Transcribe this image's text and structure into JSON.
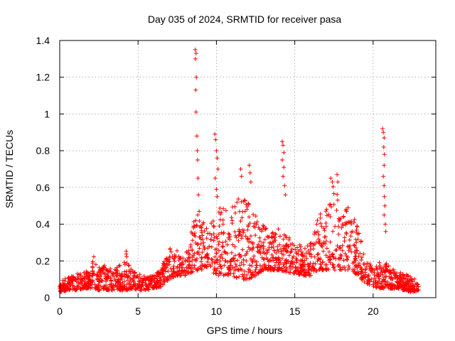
{
  "chart_data": {
    "type": "scatter",
    "title": "Day 035 of 2024, SRMTID for receiver pasa",
    "xlabel": "GPS time / hours",
    "ylabel": "SRMTID / TECUs",
    "xlim": [
      0,
      24
    ],
    "ylim": [
      0,
      1.4
    ],
    "xticks": [
      0,
      5,
      10,
      15,
      20
    ],
    "xtick_labels": [
      "0",
      "5",
      "10",
      "15",
      "20"
    ],
    "yticks": [
      0,
      0.2,
      0.4,
      0.6,
      0.8,
      1.0,
      1.2,
      1.4
    ],
    "ytick_labels": [
      "0",
      "0.2",
      "0.4",
      "0.6",
      "0.8",
      "1",
      "1.2",
      "1.4"
    ],
    "grid": true,
    "marker": "plus",
    "color": "#ff0000",
    "series": [
      {
        "name": "SRMTID",
        "envelope": {
          "x": [
            0.0,
            0.5,
            1.0,
            1.5,
            2.0,
            2.2,
            2.5,
            3.0,
            3.5,
            4.0,
            4.2,
            4.5,
            5.0,
            5.5,
            6.0,
            6.5,
            7.0,
            7.5,
            8.0,
            8.5,
            9.0,
            9.5,
            10.0,
            10.5,
            11.0,
            11.5,
            12.0,
            12.5,
            13.0,
            13.5,
            14.0,
            14.5,
            15.0,
            15.5,
            16.0,
            16.5,
            17.0,
            17.5,
            18.0,
            18.5,
            19.0,
            19.5,
            20.0,
            20.5,
            21.0,
            21.5,
            22.0,
            22.5,
            22.9
          ],
          "y_low": [
            0.03,
            0.04,
            0.04,
            0.05,
            0.05,
            0.05,
            0.04,
            0.04,
            0.04,
            0.04,
            0.04,
            0.04,
            0.04,
            0.04,
            0.05,
            0.06,
            0.1,
            0.12,
            0.12,
            0.14,
            0.15,
            0.15,
            0.12,
            0.12,
            0.12,
            0.1,
            0.1,
            0.12,
            0.15,
            0.15,
            0.15,
            0.14,
            0.13,
            0.12,
            0.12,
            0.15,
            0.15,
            0.15,
            0.15,
            0.15,
            0.12,
            0.08,
            0.06,
            0.05,
            0.05,
            0.05,
            0.04,
            0.03,
            0.04
          ],
          "y_high": [
            0.1,
            0.12,
            0.13,
            0.14,
            0.16,
            0.24,
            0.18,
            0.18,
            0.17,
            0.18,
            0.27,
            0.16,
            0.13,
            0.12,
            0.12,
            0.16,
            0.28,
            0.26,
            0.22,
            0.42,
            0.5,
            0.38,
            0.48,
            0.5,
            0.52,
            0.55,
            0.52,
            0.45,
            0.4,
            0.36,
            0.38,
            0.34,
            0.3,
            0.28,
            0.3,
            0.45,
            0.5,
            0.62,
            0.55,
            0.48,
            0.4,
            0.22,
            0.16,
            0.2,
            0.18,
            0.15,
            0.13,
            0.12,
            0.08
          ]
        },
        "spikes": [
          {
            "x": 8.65,
            "y": 1.35
          },
          {
            "x": 8.7,
            "y": 1.33
          },
          {
            "x": 8.66,
            "y": 1.3
          },
          {
            "x": 8.72,
            "y": 1.2
          },
          {
            "x": 8.68,
            "y": 1.13
          },
          {
            "x": 8.7,
            "y": 1.01
          },
          {
            "x": 8.75,
            "y": 0.88
          },
          {
            "x": 8.78,
            "y": 0.8
          },
          {
            "x": 8.8,
            "y": 0.75
          },
          {
            "x": 8.82,
            "y": 0.65
          },
          {
            "x": 8.85,
            "y": 0.56
          },
          {
            "x": 8.9,
            "y": 0.47
          },
          {
            "x": 9.9,
            "y": 0.89
          },
          {
            "x": 9.95,
            "y": 0.86
          },
          {
            "x": 10.0,
            "y": 0.8
          },
          {
            "x": 10.05,
            "y": 0.76
          },
          {
            "x": 10.1,
            "y": 0.7
          },
          {
            "x": 9.92,
            "y": 0.65
          },
          {
            "x": 10.0,
            "y": 0.59
          },
          {
            "x": 10.05,
            "y": 0.55
          },
          {
            "x": 11.55,
            "y": 0.7
          },
          {
            "x": 11.6,
            "y": 0.66
          },
          {
            "x": 12.1,
            "y": 0.72
          },
          {
            "x": 12.15,
            "y": 0.68
          },
          {
            "x": 12.2,
            "y": 0.63
          },
          {
            "x": 14.2,
            "y": 0.85
          },
          {
            "x": 14.25,
            "y": 0.83
          },
          {
            "x": 14.3,
            "y": 0.79
          },
          {
            "x": 14.2,
            "y": 0.75
          },
          {
            "x": 14.3,
            "y": 0.71
          },
          {
            "x": 14.25,
            "y": 0.66
          },
          {
            "x": 14.35,
            "y": 0.61
          },
          {
            "x": 14.4,
            "y": 0.56
          },
          {
            "x": 17.3,
            "y": 0.65
          },
          {
            "x": 17.4,
            "y": 0.63
          },
          {
            "x": 17.7,
            "y": 0.67
          },
          {
            "x": 17.75,
            "y": 0.63
          },
          {
            "x": 20.6,
            "y": 0.92
          },
          {
            "x": 20.65,
            "y": 0.9
          },
          {
            "x": 20.7,
            "y": 0.87
          },
          {
            "x": 20.68,
            "y": 0.82
          },
          {
            "x": 20.72,
            "y": 0.78
          },
          {
            "x": 20.7,
            "y": 0.72
          },
          {
            "x": 20.65,
            "y": 0.66
          },
          {
            "x": 20.7,
            "y": 0.61
          },
          {
            "x": 20.72,
            "y": 0.55
          },
          {
            "x": 20.75,
            "y": 0.5
          },
          {
            "x": 20.7,
            "y": 0.45
          },
          {
            "x": 20.78,
            "y": 0.4
          },
          {
            "x": 20.8,
            "y": 0.36
          }
        ]
      }
    ]
  }
}
